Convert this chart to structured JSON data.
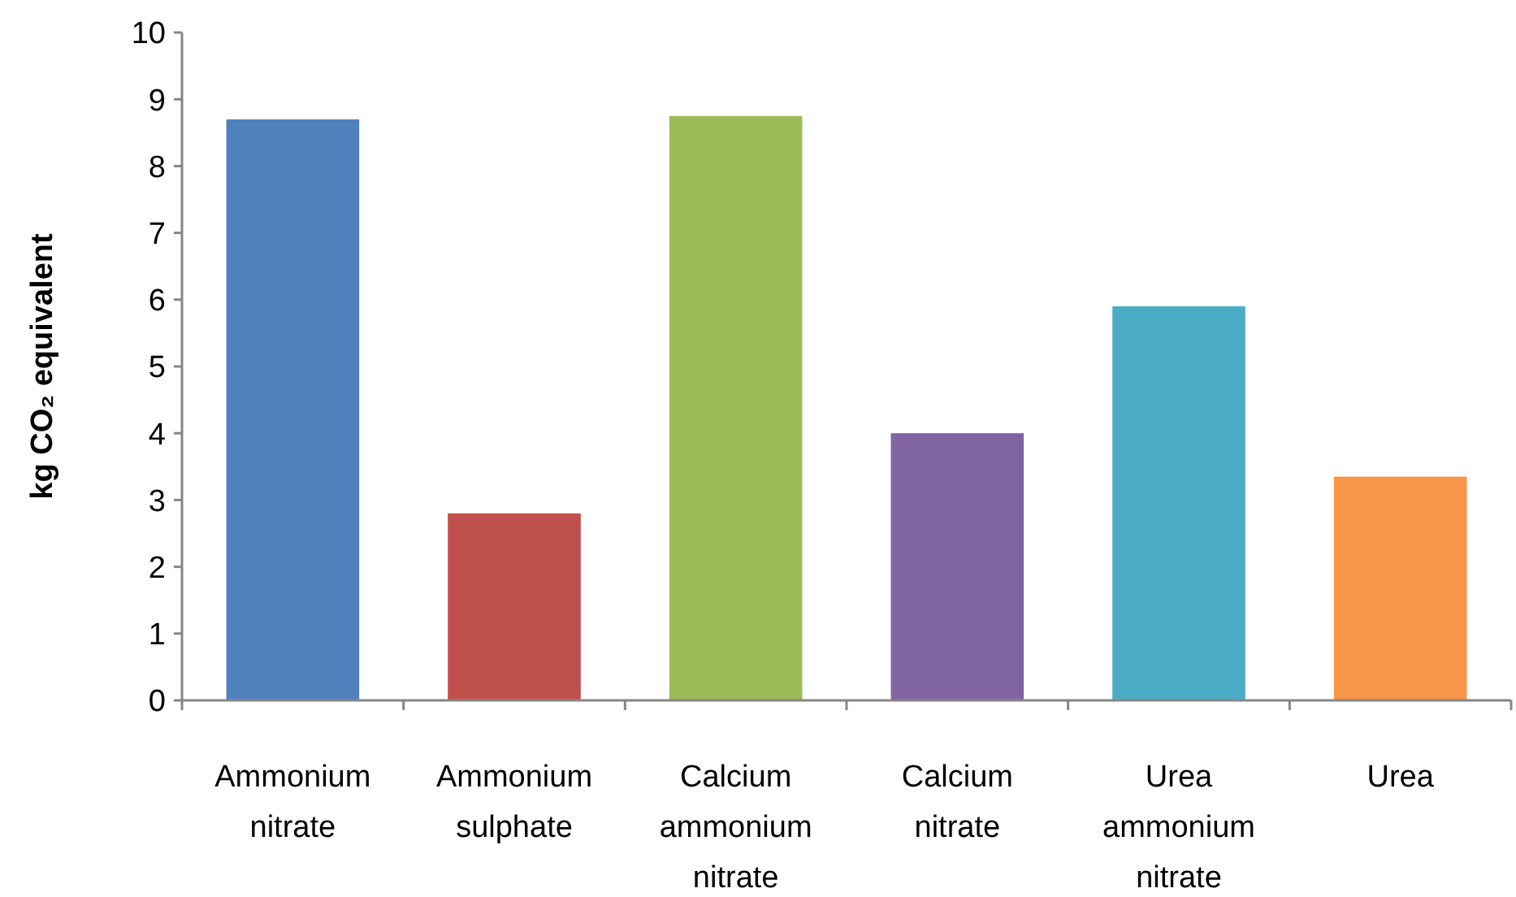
{
  "chart_data": {
    "type": "bar",
    "ylabel": "kg CO₂ equivalent",
    "categories": [
      "Ammonium nitrate",
      "Ammonium sulphate",
      "Calcium ammonium nitrate",
      "Calcium nitrate",
      "Urea ammonium nitrate",
      "Urea"
    ],
    "values": [
      8.7,
      2.8,
      8.75,
      4,
      5.9,
      3.35
    ],
    "colors": [
      "#4f81bd",
      "#c0504d",
      "#9bbb59",
      "#8064a2",
      "#4bacc6",
      "#f79646"
    ],
    "ylim": [
      0,
      10
    ],
    "yticks": [
      0,
      1,
      2,
      3,
      4,
      5,
      6,
      7,
      8,
      9,
      10
    ],
    "grid": false
  }
}
